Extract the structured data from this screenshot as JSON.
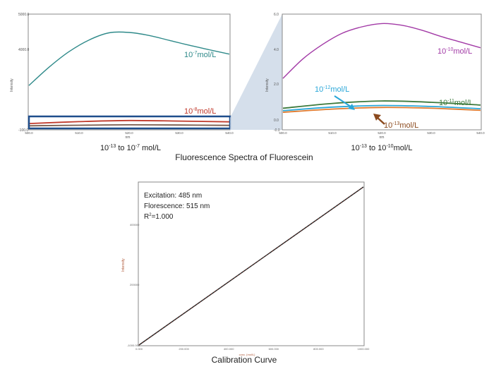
{
  "figure_title": "Fluorescence Spectra of Fluorescein",
  "chart_data": [
    {
      "type": "line",
      "ylabel": "Intensity",
      "xlabel": "nm",
      "x_ticks": [
        "500.0",
        "510.0",
        "520.0",
        "530.0",
        "540.0"
      ],
      "y_ticks": [
        "-100.0",
        "4000.0",
        "5000.0"
      ],
      "xlim": [
        500,
        540
      ],
      "ylim": [
        -100,
        5000
      ],
      "caption": "10-13 to 10-7 mol/L",
      "caption_parts": {
        "a": "10",
        "a_sup": "-13",
        "b": " to 10",
        "b_sup": "-7",
        "c": " mol/L"
      },
      "series": [
        {
          "name": "10-7mol/L",
          "label": {
            "base": "10",
            "sup": "-7",
            "rest": "mol/L"
          },
          "color": "#2f8a8a",
          "x": [
            500,
            504,
            508,
            512,
            516,
            520,
            524,
            528,
            532,
            536,
            540
          ],
          "y": [
            2180,
            3150,
            3980,
            4600,
            4980,
            5000,
            4840,
            4580,
            4320,
            4080,
            3850
          ]
        },
        {
          "name": "10-8mol/L",
          "label": {
            "base": "10",
            "sup": "-8",
            "rest": "mol/L"
          },
          "color": "#c0392b",
          "x": [
            500,
            510,
            520,
            530,
            540
          ],
          "y": [
            160,
            260,
            320,
            290,
            250
          ]
        },
        {
          "name": "",
          "color": "#7a5a4a",
          "x": [
            500,
            510,
            520,
            530,
            540
          ],
          "y": [
            40,
            70,
            90,
            80,
            60
          ]
        }
      ],
      "highlight_box": "blue rectangle around low-concentration traces"
    },
    {
      "type": "line",
      "ylabel": "Intensity",
      "xlabel": "nm",
      "x_ticks": [
        "500.0",
        "510.0",
        "520.0",
        "530.0",
        "540.0"
      ],
      "y_ticks": [
        "-0.0",
        "0.0",
        "2.0",
        "4.0",
        "6.0"
      ],
      "xlim": [
        500,
        540
      ],
      "ylim": [
        -0.5,
        6.0
      ],
      "caption": "10-13 to 10-10mol/L",
      "caption_parts": {
        "a": "10",
        "a_sup": "-13",
        "b": " to 10",
        "b_sup": "-10",
        "c": "mol/L"
      },
      "series": [
        {
          "name": "10-10mol/L",
          "label": {
            "base": "10",
            "sup": "-10",
            "rest": "mol/L"
          },
          "color": "#a23aa6",
          "x": [
            500,
            504,
            508,
            512,
            516,
            520,
            524,
            528,
            532,
            536,
            540
          ],
          "y": [
            2.4,
            3.6,
            4.5,
            5.2,
            5.6,
            5.8,
            5.7,
            5.4,
            5.0,
            4.65,
            4.3
          ]
        },
        {
          "name": "10-11mol/L",
          "label": {
            "base": "10",
            "sup": "-11",
            "rest": "mol/L"
          },
          "color": "#3d7a3d",
          "x": [
            500,
            510,
            520,
            530,
            540
          ],
          "y": [
            0.55,
            0.85,
            1.0,
            0.92,
            0.75
          ]
        },
        {
          "name": "10-12mol/L",
          "label": {
            "base": "10",
            "sup": "-12",
            "rest": "mol/L"
          },
          "color": "#2aa7d8",
          "x": [
            500,
            510,
            520,
            530,
            540
          ],
          "y": [
            0.4,
            0.62,
            0.72,
            0.66,
            0.52
          ]
        },
        {
          "name": "10-13mol/L",
          "label": {
            "base": "10",
            "sup": "-13",
            "rest": "mol/L"
          },
          "color": "#e07a2e",
          "x": [
            500,
            510,
            520,
            530,
            540
          ],
          "y": [
            0.3,
            0.5,
            0.6,
            0.55,
            0.42
          ]
        }
      ]
    },
    {
      "type": "line",
      "title": "Calibration Curve",
      "ylabel": "Intensity",
      "xlabel": "conc. [mol/L]",
      "x_ticks": [
        "0.000",
        "200.000",
        "400.000",
        "600.000",
        "800.000",
        "1000.000"
      ],
      "y_ticks": [
        "-1000.000",
        "200000",
        "400000"
      ],
      "annotations": [
        "Excitation: 485 nm",
        "Florescence: 515 nm",
        "R2=1.000"
      ],
      "r2": {
        "base": "R",
        "sup": "2",
        "rest": "=1.000"
      },
      "series": [
        {
          "name": "",
          "color": "#222222",
          "x": [
            0,
            1000
          ],
          "y": [
            0,
            1
          ]
        }
      ]
    }
  ]
}
